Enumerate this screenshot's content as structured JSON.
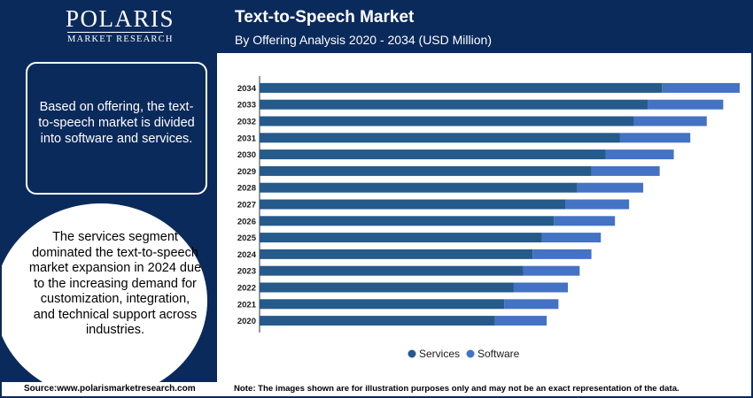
{
  "brand": {
    "name": "POLARIS",
    "tagline": "MARKET RESEARCH"
  },
  "header": {
    "title": "Text-to-Speech Market",
    "subtitle": "By Offering Analysis 2020 - 2034 (USD Million)"
  },
  "sidebar": {
    "info_text": "Based on offering, the text-to-speech market is divided into software and services.",
    "circle_text": "The services segment dominated the text-to-speech market expansion in 2024 due to the increasing demand for customization, integration, and technical support across industries."
  },
  "footer": {
    "source": "Source:www.polarismarketresearch.com",
    "note": "Note: The images shown are for illustration purposes only and may not be an exact representation of the data."
  },
  "colors": {
    "navy": "#0b2a5c",
    "services": "#255a8a",
    "software": "#4472c4"
  },
  "chart_data": {
    "type": "bar",
    "orientation": "horizontal",
    "stacked": true,
    "categories": [
      "2020",
      "2021",
      "2022",
      "2023",
      "2024",
      "2025",
      "2026",
      "2027",
      "2028",
      "2029",
      "2030",
      "2031",
      "2032",
      "2033",
      "2034"
    ],
    "series": [
      {
        "name": "Services",
        "color": "#255a8a",
        "values": [
          100,
          104,
          108,
          112,
          116,
          120,
          125,
          130,
          135,
          141,
          147,
          153,
          159,
          165,
          171
        ]
      },
      {
        "name": "Software",
        "color": "#4472c4",
        "values": [
          22,
          23,
          23,
          24,
          25,
          25,
          26,
          27,
          28,
          29,
          29,
          30,
          31,
          32,
          33
        ]
      }
    ],
    "legend_position": "bottom",
    "grid": false
  }
}
